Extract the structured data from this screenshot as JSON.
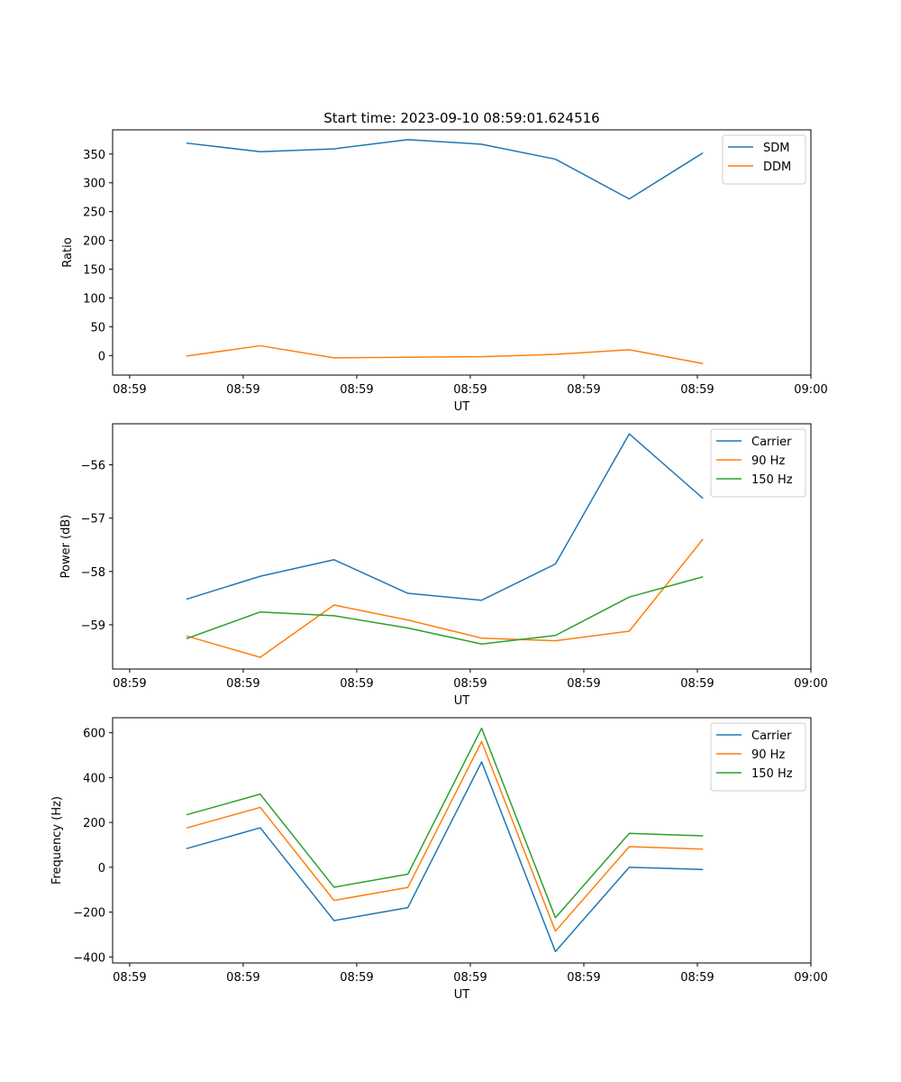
{
  "chart_data": [
    {
      "type": "line",
      "title": "Start time: 2023-09-10 08:59:01.624516",
      "xlabel": "UT",
      "ylabel": "Ratio",
      "x": [
        0.5,
        1.15,
        1.8,
        2.45,
        3.1,
        3.75,
        4.4,
        5.05
      ],
      "xlim": [
        -0.15,
        6.0
      ],
      "x_ticks": [
        0,
        1,
        2,
        3,
        4,
        5,
        6
      ],
      "x_tick_labels": [
        "08:59",
        "08:59",
        "08:59",
        "08:59",
        "08:59",
        "08:59",
        "09:00"
      ],
      "ylim": [
        -34,
        392
      ],
      "y_ticks": [
        0,
        50,
        100,
        150,
        200,
        250,
        300,
        350
      ],
      "y_tick_labels": [
        "0",
        "50",
        "100",
        "150",
        "200",
        "250",
        "300",
        "350"
      ],
      "legend": "top-right",
      "series": [
        {
          "name": "SDM",
          "color": "#1f77b4",
          "values": [
            369,
            354,
            359,
            375,
            367,
            341,
            272,
            352
          ]
        },
        {
          "name": "DDM",
          "color": "#ff7f0e",
          "values": [
            -1,
            17,
            -4,
            -3,
            -2,
            2,
            10,
            -14
          ]
        }
      ]
    },
    {
      "type": "line",
      "title": "",
      "xlabel": "UT",
      "ylabel": "Power (dB)",
      "x": [
        0.5,
        1.15,
        1.8,
        2.45,
        3.1,
        3.75,
        4.4,
        5.05
      ],
      "xlim": [
        -0.15,
        6.0
      ],
      "x_ticks": [
        0,
        1,
        2,
        3,
        4,
        5,
        6
      ],
      "x_tick_labels": [
        "08:59",
        "08:59",
        "08:59",
        "08:59",
        "08:59",
        "08:59",
        "09:00"
      ],
      "ylim": [
        -59.83,
        -55.23
      ],
      "y_ticks": [
        -59,
        -58,
        -57,
        -56
      ],
      "y_tick_labels": [
        "−59",
        "−58",
        "−57",
        "−56"
      ],
      "legend": "top-right",
      "series": [
        {
          "name": "Carrier",
          "color": "#1f77b4",
          "values": [
            -58.52,
            -58.09,
            -57.78,
            -58.41,
            -58.54,
            -57.86,
            -55.42,
            -56.63
          ]
        },
        {
          "name": "90 Hz",
          "color": "#ff7f0e",
          "values": [
            -59.21,
            -59.61,
            -58.63,
            -58.91,
            -59.25,
            -59.3,
            -59.12,
            -57.39
          ]
        },
        {
          "name": "150 Hz",
          "color": "#2ca02c",
          "values": [
            -59.26,
            -58.76,
            -58.83,
            -59.06,
            -59.36,
            -59.2,
            -58.48,
            -58.1
          ]
        }
      ]
    },
    {
      "type": "line",
      "title": "",
      "xlabel": "UT",
      "ylabel": "Frequency (Hz)",
      "x": [
        0.5,
        1.15,
        1.8,
        2.45,
        3.1,
        3.75,
        4.4,
        5.05
      ],
      "xlim": [
        -0.15,
        6.0
      ],
      "x_ticks": [
        0,
        1,
        2,
        3,
        4,
        5,
        6
      ],
      "x_tick_labels": [
        "08:59",
        "08:59",
        "08:59",
        "08:59",
        "08:59",
        "08:59",
        "09:00"
      ],
      "ylim": [
        -427,
        667
      ],
      "y_ticks": [
        -400,
        -200,
        0,
        200,
        400,
        600
      ],
      "y_tick_labels": [
        "−400",
        "−200",
        "0",
        "200",
        "400",
        "600"
      ],
      "legend": "top-right",
      "series": [
        {
          "name": "Carrier",
          "color": "#1f77b4",
          "values": [
            83,
            176,
            -238,
            -180,
            470,
            -376,
            0,
            -10
          ]
        },
        {
          "name": "90 Hz",
          "color": "#ff7f0e",
          "values": [
            175,
            267,
            -148,
            -90,
            561,
            -285,
            92,
            81
          ]
        },
        {
          "name": "150 Hz",
          "color": "#2ca02c",
          "values": [
            234,
            326,
            -89,
            -31,
            620,
            -225,
            151,
            140
          ]
        }
      ]
    }
  ]
}
